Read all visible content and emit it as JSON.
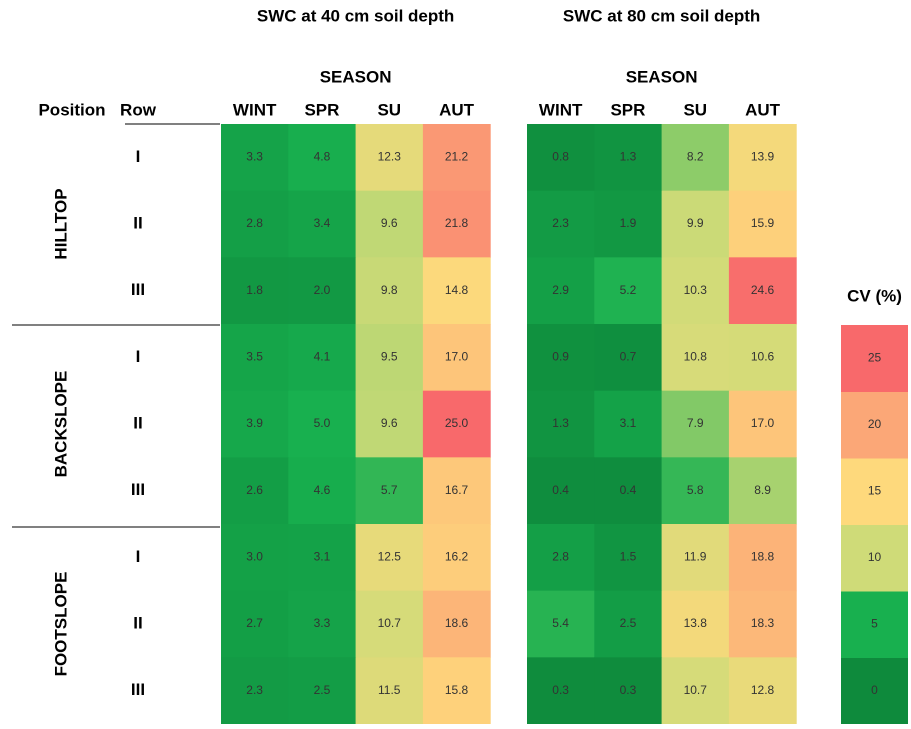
{
  "chart_data": {
    "type": "heatmap",
    "header": {
      "position": "Position",
      "row": "Row"
    },
    "positions": [
      "HILLTOP",
      "BACKSLOPE",
      "FOOTSLOPE"
    ],
    "rows": [
      "I",
      "II",
      "III"
    ],
    "panels": [
      {
        "title": "SWC at 40 cm soil depth",
        "subtitle": "SEASON",
        "columns": [
          "WINT",
          "SPR",
          "SU",
          "AUT"
        ],
        "values": [
          [
            3.3,
            4.8,
            12.3,
            21.2
          ],
          [
            2.8,
            3.4,
            9.6,
            21.8
          ],
          [
            1.8,
            2.0,
            9.8,
            14.8
          ],
          [
            3.5,
            4.1,
            9.5,
            17.0
          ],
          [
            3.9,
            5.0,
            9.6,
            25.0
          ],
          [
            2.6,
            4.6,
            5.7,
            16.7
          ],
          [
            3.0,
            3.1,
            12.5,
            16.2
          ],
          [
            2.7,
            3.3,
            10.7,
            18.6
          ],
          [
            2.3,
            2.5,
            11.5,
            15.8
          ]
        ],
        "value_labels": [
          [
            "3.3",
            "4.8",
            "12.3",
            "21.2"
          ],
          [
            "2.8",
            "3.4",
            "9.6",
            "21.8"
          ],
          [
            "1.8",
            "2.0",
            "9.8",
            "14.8"
          ],
          [
            "3.5",
            "4.1",
            "9.5",
            "17.0"
          ],
          [
            "3.9",
            "5.0",
            "9.6",
            "25.0"
          ],
          [
            "2.6",
            "4.6",
            "5.7",
            "16.7"
          ],
          [
            "3.0",
            "3.1",
            "12.5",
            "16.2"
          ],
          [
            "2.7",
            "3.3",
            "10.7",
            "18.6"
          ],
          [
            "2.3",
            "2.5",
            "11.5",
            "15.8"
          ]
        ]
      },
      {
        "title": "SWC at 80 cm soil depth",
        "subtitle": "SEASON",
        "columns": [
          "WINT",
          "SPR",
          "SU",
          "AUT"
        ],
        "values": [
          [
            0.8,
            1.3,
            8.2,
            13.9
          ],
          [
            2.3,
            1.9,
            9.9,
            15.9
          ],
          [
            2.9,
            5.2,
            10.3,
            24.6
          ],
          [
            0.9,
            0.7,
            10.8,
            10.6
          ],
          [
            1.3,
            3.1,
            7.9,
            17.0
          ],
          [
            0.4,
            0.4,
            5.8,
            8.9
          ],
          [
            2.8,
            1.5,
            11.9,
            18.8
          ],
          [
            5.4,
            2.5,
            13.8,
            18.3
          ],
          [
            0.3,
            0.3,
            10.7,
            12.8
          ]
        ],
        "value_labels": [
          [
            "0.8",
            "1.3",
            "8.2",
            "13.9"
          ],
          [
            "2.3",
            "1.9",
            "9.9",
            "15.9"
          ],
          [
            "2.9",
            "5.2",
            "10.3",
            "24.6"
          ],
          [
            "0.9",
            "0.7",
            "10.8",
            "10.6"
          ],
          [
            "1.3",
            "3.1",
            "7.9",
            "17.0"
          ],
          [
            "0.4",
            "0.4",
            "5.8",
            "8.9"
          ],
          [
            "2.8",
            "1.5",
            "11.9",
            "18.8"
          ],
          [
            "5.4",
            "2.5",
            "13.8",
            "18.3"
          ],
          [
            "0.3",
            "0.3",
            "10.7",
            "12.8"
          ]
        ]
      }
    ],
    "legend": {
      "title": "CV (%)",
      "stops": [
        0,
        5,
        10,
        15,
        20,
        25
      ],
      "colors": [
        "#0e8a3c",
        "#18b04f",
        "#cfdb78",
        "#fed97c",
        "#fba777",
        "#f8696b"
      ]
    }
  }
}
